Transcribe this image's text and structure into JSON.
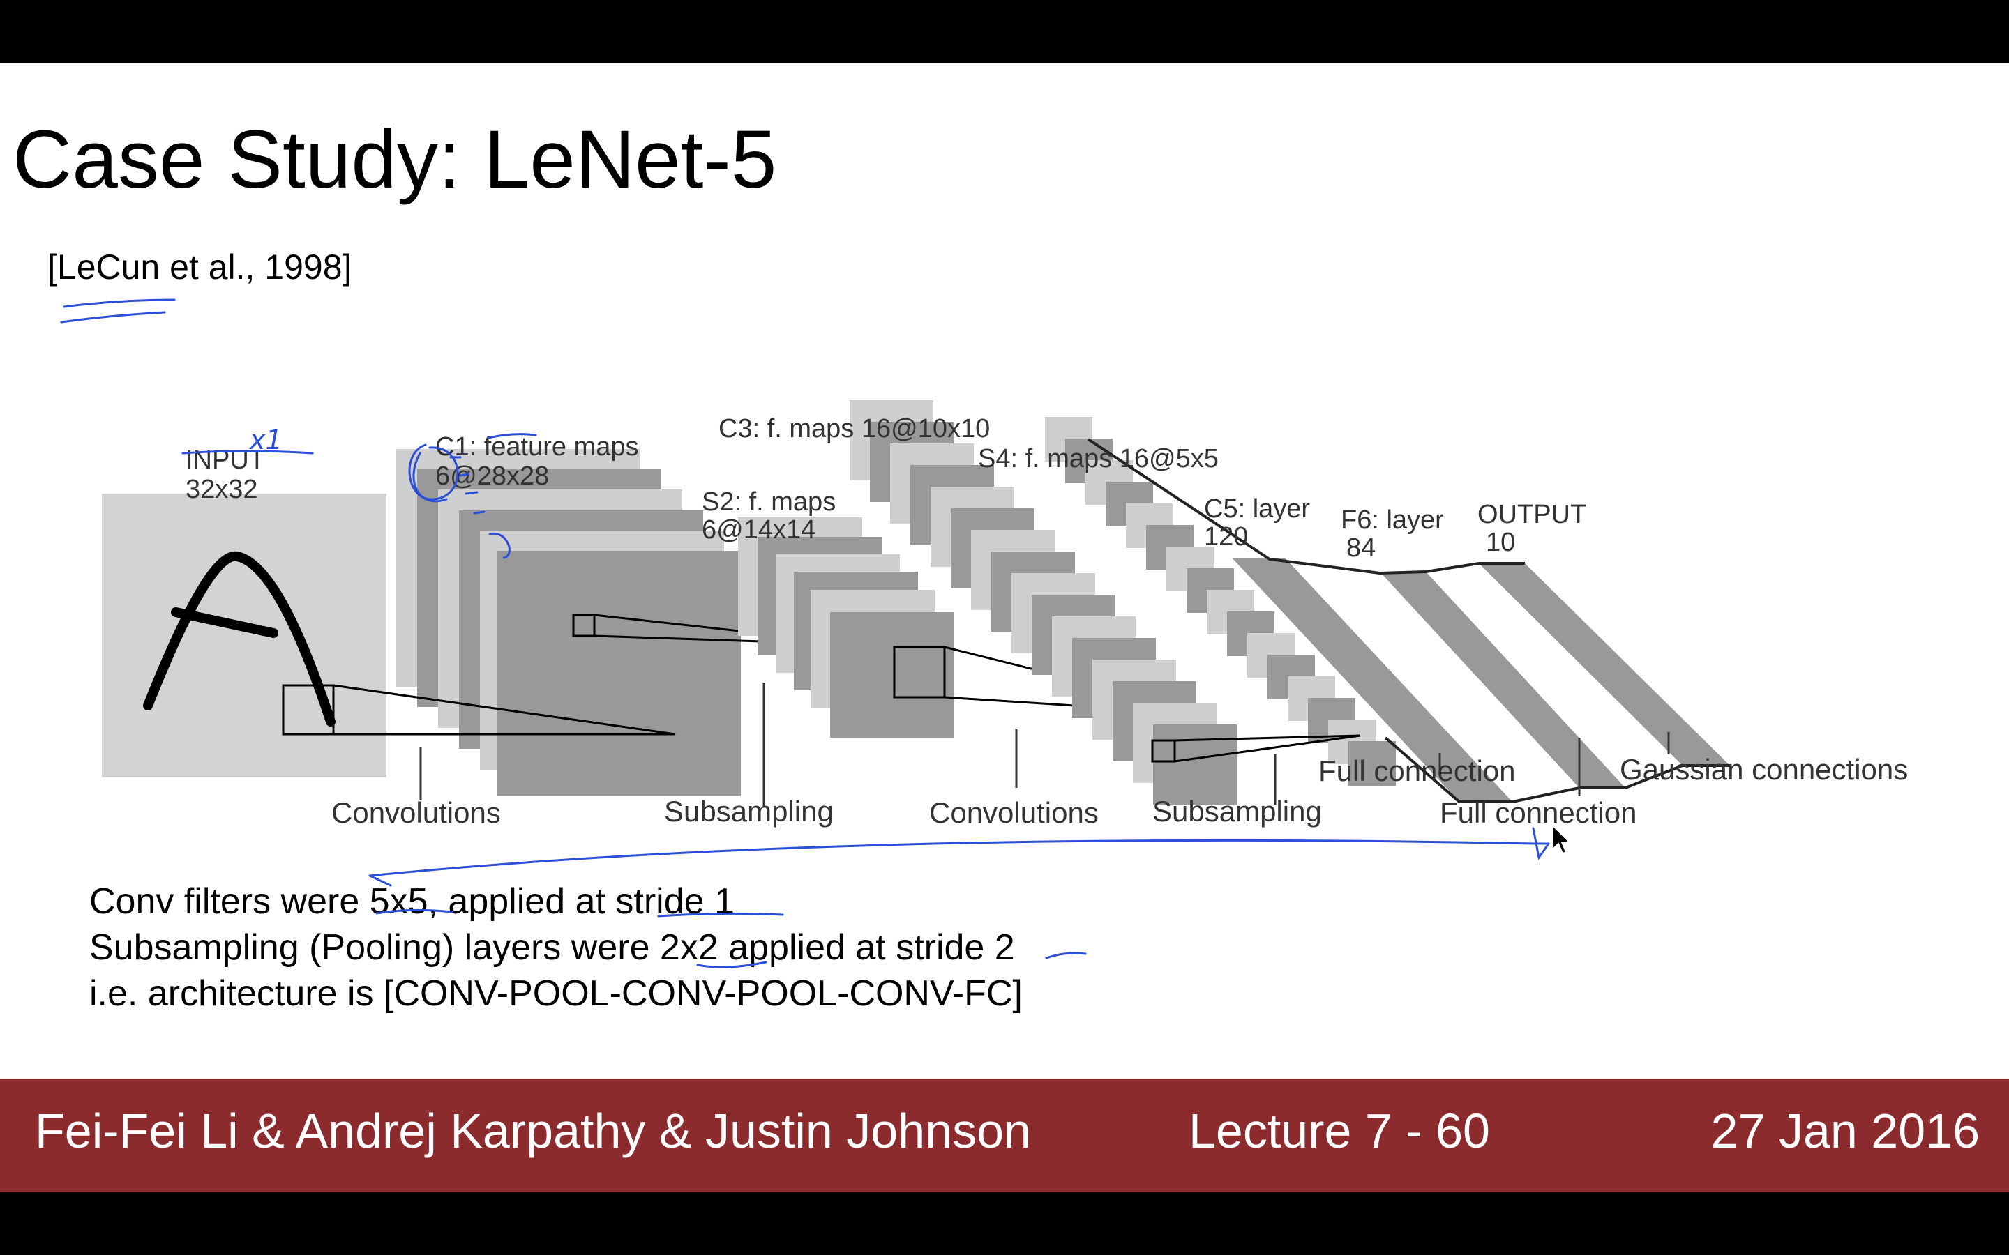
{
  "slide": {
    "title": "Case Study: LeNet-5",
    "citation": "[LeCun et al., 1998]"
  },
  "diagram": {
    "input_label": [
      "INPUT",
      "32x32"
    ],
    "c1_label": [
      "C1: feature maps",
      "6@28x28"
    ],
    "s2_label": [
      "S2: f. maps",
      "6@14x14"
    ],
    "c3_label": "C3: f. maps 16@10x10",
    "s4_label": "S4: f. maps 16@5x5",
    "c5_label": [
      "C5: layer",
      "120"
    ],
    "f6_label": [
      "F6: layer",
      "84"
    ],
    "output_label": [
      "OUTPUT",
      "10"
    ],
    "operations": {
      "convolutions_1": "Convolutions",
      "subsampling_1": "Subsampling",
      "convolutions_2": "Convolutions",
      "subsampling_2": "Subsampling",
      "full_connection_1": "Full connection",
      "full_connection_2": "Full connection",
      "gaussian": "Gaussian connections"
    },
    "colors": {
      "light_map": "#cfcfcf",
      "dark_map": "#999999",
      "input_bg": "#d3d3d3"
    }
  },
  "bullets": [
    "Conv filters were 5x5, applied at stride 1",
    "Subsampling (Pooling) layers were 2x2 applied at stride 2",
    "i.e. architecture is [CONV-POOL-CONV-POOL-CONV-FC]"
  ],
  "annotation": {
    "handwritten": "x1"
  },
  "footer": {
    "authors": "Fei-Fei Li & Andrej Karpathy & Justin Johnson",
    "lecture": "Lecture 7 - 60",
    "date": "27 Jan 2016"
  },
  "colors": {
    "footer_bg": "#8b2b2d",
    "ink_blue": "#2b4fd6"
  }
}
